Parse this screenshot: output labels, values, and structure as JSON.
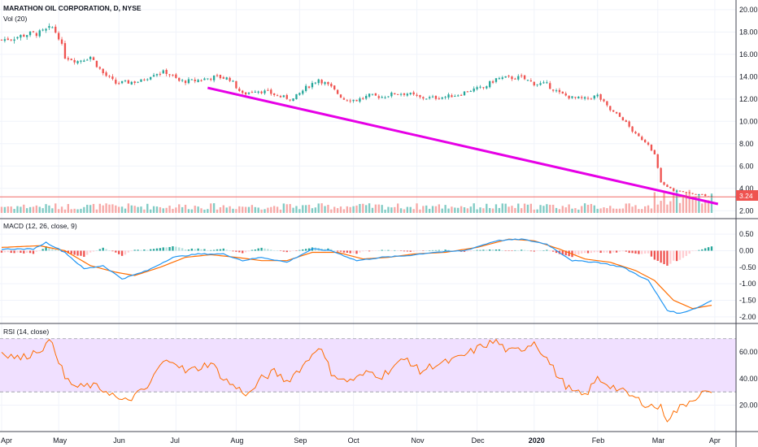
{
  "header": {
    "title": "MARATHON OIL CORPORATION, D, NYSE",
    "volume_label": "Vol (20)",
    "macd_label": "MACD (12, 26, close, 9)",
    "rsi_label": "RSI (14, close)"
  },
  "price_badge": "3.24",
  "colors": {
    "up": "#26a69a",
    "down": "#ef5350",
    "trendline": "#e600e6",
    "macd": "#2196f3",
    "signal": "#ff6d00",
    "rsi": "#ff6d00",
    "rsi_band": "#f0e0ff",
    "grid": "#f0f3fa"
  },
  "chart_data": [
    {
      "type": "candlestick",
      "title": "MARATHON OIL CORPORATION, D, NYSE",
      "x_axis": [
        "Apr",
        "May",
        "Jun",
        "Jul",
        "Aug",
        "Sep",
        "Oct",
        "Nov",
        "Dec",
        "2020",
        "Feb",
        "Mar",
        "Apr"
      ],
      "y_ticks": [
        "20.00",
        "18.00",
        "16.00",
        "14.00",
        "12.00",
        "10.00",
        "8.00",
        "6.00",
        "4.00",
        "2.00"
      ],
      "ylim": [
        1.8,
        20.5
      ],
      "close_anchors": [
        [
          0,
          17.3
        ],
        [
          4,
          17.5
        ],
        [
          8,
          17.8
        ],
        [
          12,
          17.9
        ],
        [
          16,
          18.4
        ],
        [
          18,
          17.6
        ],
        [
          20,
          15.8
        ],
        [
          24,
          15.4
        ],
        [
          28,
          15.8
        ],
        [
          32,
          14.3
        ],
        [
          36,
          13.4
        ],
        [
          40,
          13.5
        ],
        [
          44,
          13.6
        ],
        [
          48,
          14.3
        ],
        [
          52,
          14.4
        ],
        [
          56,
          13.6
        ],
        [
          60,
          13.6
        ],
        [
          64,
          13.8
        ],
        [
          68,
          14.0
        ],
        [
          72,
          13.8
        ],
        [
          76,
          12.4
        ],
        [
          80,
          12.8
        ],
        [
          84,
          12.6
        ],
        [
          88,
          12.2
        ],
        [
          92,
          12.0
        ],
        [
          96,
          13.0
        ],
        [
          100,
          13.8
        ],
        [
          104,
          13.0
        ],
        [
          108,
          12.0
        ],
        [
          112,
          11.9
        ],
        [
          116,
          12.3
        ],
        [
          120,
          12.2
        ],
        [
          124,
          12.5
        ],
        [
          128,
          12.5
        ],
        [
          132,
          12.1
        ],
        [
          136,
          12.1
        ],
        [
          140,
          12.2
        ],
        [
          144,
          12.4
        ],
        [
          148,
          12.8
        ],
        [
          152,
          13.0
        ],
        [
          156,
          13.8
        ],
        [
          160,
          13.9
        ],
        [
          164,
          13.9
        ],
        [
          168,
          13.4
        ],
        [
          172,
          13.3
        ],
        [
          176,
          12.5
        ],
        [
          180,
          12.1
        ],
        [
          184,
          12.0
        ],
        [
          188,
          12.3
        ],
        [
          192,
          11.0
        ],
        [
          196,
          10.2
        ],
        [
          200,
          8.8
        ],
        [
          204,
          8.0
        ],
        [
          206,
          7.0
        ],
        [
          208,
          4.5
        ],
        [
          212,
          3.8
        ],
        [
          216,
          3.6
        ],
        [
          220,
          3.5
        ],
        [
          224,
          3.24
        ]
      ],
      "n_bars": 225,
      "trendline": {
        "from": [
          65,
          13.0
        ],
        "to": [
          226,
          2.6
        ]
      },
      "last_price": 3.24
    },
    {
      "type": "bar",
      "title": "Vol (20)",
      "note": "volume histogram along bottom of price pane, spike in March 2020"
    },
    {
      "type": "line",
      "title": "MACD (12, 26, close, 9)",
      "y_ticks": [
        "0.50",
        "0.00",
        "-0.50",
        "-1.00",
        "-1.50",
        "-2.00"
      ],
      "ylim": [
        -2.15,
        0.65
      ],
      "series": [
        {
          "name": "MACD",
          "anchors": [
            [
              0,
              0.05
            ],
            [
              10,
              0.05
            ],
            [
              14,
              0.25
            ],
            [
              20,
              -0.05
            ],
            [
              26,
              -0.55
            ],
            [
              32,
              -0.45
            ],
            [
              38,
              -0.85
            ],
            [
              46,
              -0.6
            ],
            [
              54,
              -0.2
            ],
            [
              62,
              -0.1
            ],
            [
              70,
              -0.1
            ],
            [
              76,
              -0.3
            ],
            [
              82,
              -0.2
            ],
            [
              90,
              -0.35
            ],
            [
              98,
              0.05
            ],
            [
              104,
              0.0
            ],
            [
              112,
              -0.3
            ],
            [
              120,
              -0.2
            ],
            [
              128,
              -0.15
            ],
            [
              136,
              -0.05
            ],
            [
              146,
              0.0
            ],
            [
              156,
              0.3
            ],
            [
              164,
              0.35
            ],
            [
              172,
              0.2
            ],
            [
              180,
              -0.3
            ],
            [
              188,
              -0.35
            ],
            [
              196,
              -0.5
            ],
            [
              204,
              -0.9
            ],
            [
              210,
              -1.8
            ],
            [
              214,
              -1.9
            ],
            [
              220,
              -1.7
            ],
            [
              224,
              -1.5
            ]
          ]
        },
        {
          "name": "Signal",
          "anchors": [
            [
              0,
              0.1
            ],
            [
              12,
              0.15
            ],
            [
              20,
              0.0
            ],
            [
              28,
              -0.45
            ],
            [
              36,
              -0.65
            ],
            [
              42,
              -0.75
            ],
            [
              50,
              -0.5
            ],
            [
              58,
              -0.2
            ],
            [
              66,
              -0.12
            ],
            [
              74,
              -0.2
            ],
            [
              82,
              -0.3
            ],
            [
              90,
              -0.3
            ],
            [
              98,
              -0.05
            ],
            [
              106,
              -0.05
            ],
            [
              114,
              -0.25
            ],
            [
              122,
              -0.2
            ],
            [
              130,
              -0.1
            ],
            [
              140,
              -0.05
            ],
            [
              150,
              0.1
            ],
            [
              160,
              0.35
            ],
            [
              168,
              0.3
            ],
            [
              176,
              0.05
            ],
            [
              184,
              -0.25
            ],
            [
              192,
              -0.35
            ],
            [
              200,
              -0.6
            ],
            [
              206,
              -0.9
            ],
            [
              212,
              -1.5
            ],
            [
              218,
              -1.75
            ],
            [
              224,
              -1.65
            ]
          ]
        }
      ]
    },
    {
      "type": "line",
      "title": "RSI (14, close)",
      "y_ticks": [
        "60.00",
        "40.00",
        "20.00"
      ],
      "ylim": [
        2,
        79
      ],
      "bands": [
        30,
        70
      ],
      "series": [
        {
          "name": "RSI",
          "anchors": [
            [
              0,
              60
            ],
            [
              6,
              55
            ],
            [
              12,
              62
            ],
            [
              16,
              68
            ],
            [
              20,
              40
            ],
            [
              24,
              33
            ],
            [
              28,
              35
            ],
            [
              34,
              30
            ],
            [
              38,
              22
            ],
            [
              42,
              27
            ],
            [
              46,
              33
            ],
            [
              50,
              50
            ],
            [
              54,
              55
            ],
            [
              58,
              45
            ],
            [
              62,
              48
            ],
            [
              66,
              52
            ],
            [
              70,
              40
            ],
            [
              74,
              33
            ],
            [
              78,
              28
            ],
            [
              82,
              40
            ],
            [
              86,
              45
            ],
            [
              90,
              38
            ],
            [
              96,
              52
            ],
            [
              100,
              65
            ],
            [
              104,
              45
            ],
            [
              108,
              38
            ],
            [
              112,
              40
            ],
            [
              116,
              45
            ],
            [
              120,
              42
            ],
            [
              124,
              50
            ],
            [
              128,
              55
            ],
            [
              132,
              45
            ],
            [
              136,
              50
            ],
            [
              140,
              52
            ],
            [
              144,
              55
            ],
            [
              148,
              60
            ],
            [
              152,
              65
            ],
            [
              156,
              68
            ],
            [
              160,
              60
            ],
            [
              164,
              62
            ],
            [
              168,
              68
            ],
            [
              172,
              55
            ],
            [
              176,
              40
            ],
            [
              180,
              30
            ],
            [
              184,
              27
            ],
            [
              188,
              40
            ],
            [
              192,
              35
            ],
            [
              196,
              30
            ],
            [
              200,
              25
            ],
            [
              204,
              20
            ],
            [
              208,
              18
            ],
            [
              210,
              10
            ],
            [
              214,
              18
            ],
            [
              218,
              25
            ],
            [
              222,
              30
            ],
            [
              224,
              27
            ]
          ]
        }
      ]
    }
  ]
}
